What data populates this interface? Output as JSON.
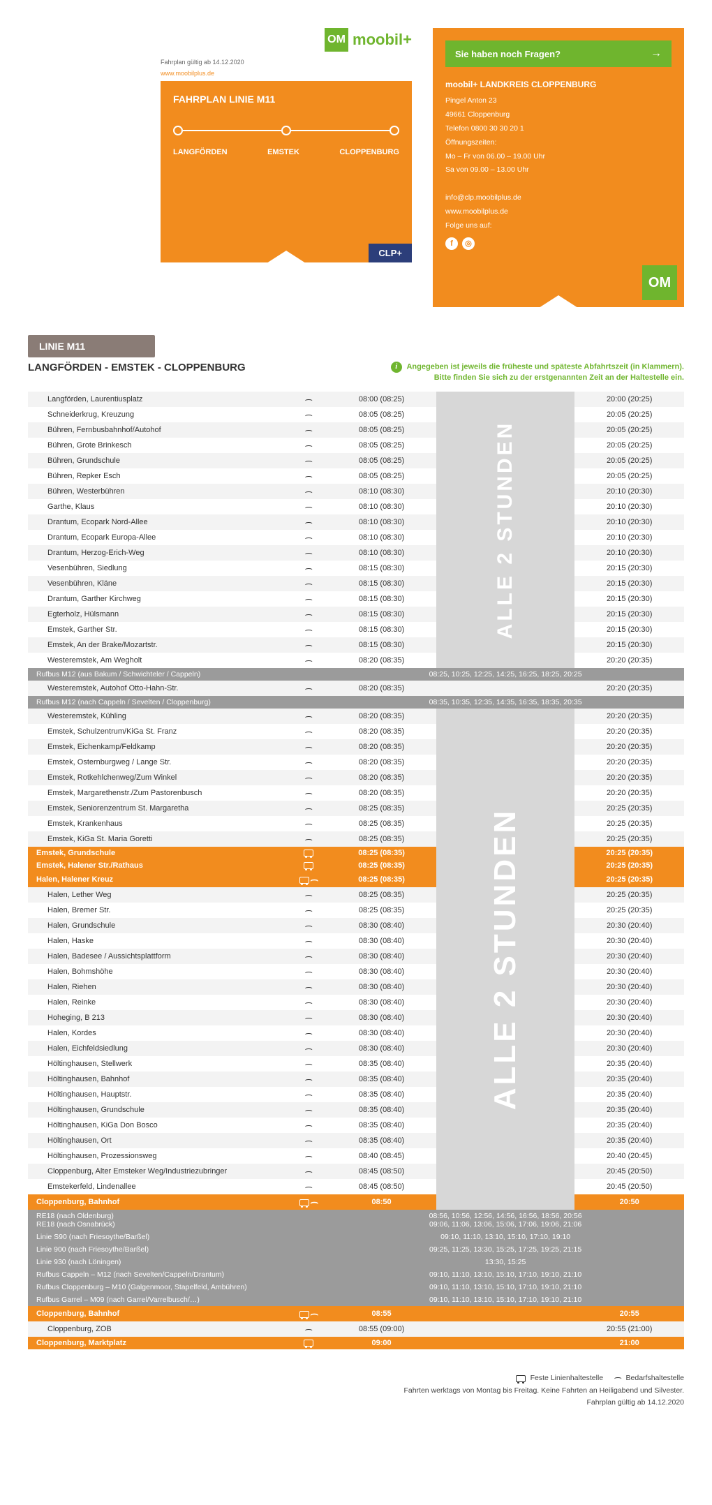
{
  "colors": {
    "orange": "#f28c1e",
    "green": "#6fb52e",
    "grey_header": "#8a7c76",
    "row_grey": "#9b9b9b",
    "stripe": "#f3f3f3",
    "gap": "#d7d7d7"
  },
  "header": {
    "brand_om": "OM",
    "brand": "moobil+",
    "valid_from": "Fahrplan gültig ab 14.12.2020",
    "website": "www.moobilplus.de",
    "card1_title": "FAHRPLAN LINIE M11",
    "route": [
      "LANGFÖRDEN",
      "EMSTEK",
      "CLOPPENBURG"
    ],
    "clp": "CLP+",
    "questions": "Sie haben noch Fragen?",
    "contact_title": "moobil+ LANDKREIS CLOPPENBURG",
    "contact_lines": [
      "Pingel Anton 23",
      "49661 Cloppenburg",
      "Telefon 0800 30 30 20 1",
      "Öffnungszeiten:",
      "Mo – Fr von 06.00 – 19.00 Uhr",
      "Sa von 09.00 – 13.00 Uhr",
      "",
      "info@clp.moobilplus.de",
      "www.moobilplus.de",
      "Folge uns auf:"
    ]
  },
  "timetable": {
    "line_label": "LINIE M11",
    "subtitle": "LANGFÖRDEN - EMSTEK - CLOPPENBURG",
    "info_note_l1": "Angegeben ist jeweils die früheste und späteste Abfahrtszeit (in Klammern).",
    "info_note_l2": "Bitte finden Sie sich zu der erstgenannten Zeit an der Haltestelle ein.",
    "interval_label": "ALLE   2 STUNDEN",
    "interval_label2": "ALLE  2 STUNDEN",
    "legend_fixed": "Feste Linienhaltestelle",
    "legend_demand": "Bedarfshaltestelle",
    "footer_l1": "Fahrten werktags von Montag bis Freitag. Keine Fahrten an Heiligabend und Silvester.",
    "footer_l2": "Fahrplan gültig ab 14.12.2020"
  },
  "rows": [
    {
      "t": "s",
      "n": "Langförden, Laurentiusplatz",
      "i": "d",
      "a": "08:00 (08:25)",
      "b": "20:00 (20:25)"
    },
    {
      "t": "s",
      "n": "Schneiderkrug, Kreuzung",
      "i": "d",
      "a": "08:05 (08:25)",
      "b": "20:05 (20:25)"
    },
    {
      "t": "s",
      "n": "Bühren, Fernbusbahnhof/Autohof",
      "i": "d",
      "a": "08:05 (08:25)",
      "b": "20:05 (20:25)"
    },
    {
      "t": "s",
      "n": "Bühren, Grote Brinkesch",
      "i": "d",
      "a": "08:05 (08:25)",
      "b": "20:05 (20:25)"
    },
    {
      "t": "s",
      "n": "Bühren, Grundschule",
      "i": "d",
      "a": "08:05 (08:25)",
      "b": "20:05 (20:25)"
    },
    {
      "t": "s",
      "n": "Bühren, Repker Esch",
      "i": "d",
      "a": "08:05 (08:25)",
      "b": "20:05 (20:25)"
    },
    {
      "t": "s",
      "n": "Bühren, Westerbühren",
      "i": "d",
      "a": "08:10 (08:30)",
      "b": "20:10 (20:30)"
    },
    {
      "t": "s",
      "n": "Garthe, Klaus",
      "i": "d",
      "a": "08:10 (08:30)",
      "b": "20:10 (20:30)"
    },
    {
      "t": "s",
      "n": "Drantum, Ecopark Nord-Allee",
      "i": "d",
      "a": "08:10 (08:30)",
      "b": "20:10 (20:30)"
    },
    {
      "t": "s",
      "n": "Drantum, Ecopark Europa-Allee",
      "i": "d",
      "a": "08:10 (08:30)",
      "b": "20:10 (20:30)"
    },
    {
      "t": "s",
      "n": "Drantum, Herzog-Erich-Weg",
      "i": "d",
      "a": "08:10 (08:30)",
      "b": "20:10 (20:30)"
    },
    {
      "t": "s",
      "n": "Vesenbühren, Siedlung",
      "i": "d",
      "a": "08:15 (08:30)",
      "b": "20:15 (20:30)"
    },
    {
      "t": "s",
      "n": "Vesenbühren, Kläne",
      "i": "d",
      "a": "08:15 (08:30)",
      "b": "20:15 (20:30)"
    },
    {
      "t": "s",
      "n": "Drantum, Garther Kirchweg",
      "i": "d",
      "a": "08:15 (08:30)",
      "b": "20:15 (20:30)"
    },
    {
      "t": "s",
      "n": "Egterholz, Hülsmann",
      "i": "d",
      "a": "08:15 (08:30)",
      "b": "20:15 (20:30)"
    },
    {
      "t": "s",
      "n": "Emstek, Garther Str.",
      "i": "d",
      "a": "08:15 (08:30)",
      "b": "20:15 (20:30)"
    },
    {
      "t": "s",
      "n": "Emstek, An der Brake/Mozartstr.",
      "i": "d",
      "a": "08:15 (08:30)",
      "b": "20:15 (20:30)"
    },
    {
      "t": "s",
      "n": "Westeremstek, Am Wegholt",
      "i": "d",
      "a": "08:20 (08:35)",
      "b": "20:20 (20:35)"
    },
    {
      "t": "g",
      "n": "Rufbus M12 (aus Bakum / Schwichteler / Cappeln)",
      "mid": "08:25, 10:25, 12:25, 14:25, 16:25, 18:25, 20:25"
    },
    {
      "t": "s",
      "n": "Westeremstek, Autohof Otto-Hahn-Str.",
      "i": "d",
      "a": "08:20 (08:35)",
      "b": "20:20 (20:35)",
      "nogap": true
    },
    {
      "t": "g",
      "n": "Rufbus M12 (nach Cappeln / Sevelten / Cloppenburg)",
      "mid": "08:35, 10:35, 12:35, 14:35, 16:35, 18:35, 20:35"
    },
    {
      "t": "s",
      "n": "Westeremstek, Kühling",
      "i": "d",
      "a": "08:20 (08:35)",
      "b": "20:20 (20:35)"
    },
    {
      "t": "s",
      "n": "Emstek, Schulzentrum/KiGa St. Franz",
      "i": "d",
      "a": "08:20 (08:35)",
      "b": "20:20 (20:35)"
    },
    {
      "t": "s",
      "n": "Emstek, Eichenkamp/Feldkamp",
      "i": "d",
      "a": "08:20 (08:35)",
      "b": "20:20 (20:35)"
    },
    {
      "t": "s",
      "n": "Emstek, Osternburgweg / Lange Str.",
      "i": "d",
      "a": "08:20 (08:35)",
      "b": "20:20 (20:35)"
    },
    {
      "t": "s",
      "n": "Emstek, Rotkehlchenweg/Zum Winkel",
      "i": "d",
      "a": "08:20 (08:35)",
      "b": "20:20 (20:35)"
    },
    {
      "t": "s",
      "n": "Emstek, Margarethenstr./Zum Pastorenbusch",
      "i": "d",
      "a": "08:20 (08:35)",
      "b": "20:20 (20:35)"
    },
    {
      "t": "s",
      "n": "Emstek, Seniorenzentrum St. Margaretha",
      "i": "d",
      "a": "08:25 (08:35)",
      "b": "20:25 (20:35)"
    },
    {
      "t": "s",
      "n": "Emstek, Krankenhaus",
      "i": "d",
      "a": "08:25 (08:35)",
      "b": "20:25 (20:35)"
    },
    {
      "t": "s",
      "n": "Emstek, KiGa St. Maria Goretti",
      "i": "d",
      "a": "08:25 (08:35)",
      "b": "20:25 (20:35)"
    },
    {
      "t": "o",
      "n": "Emstek, Grundschule",
      "i": "b",
      "a": "08:25 (08:35)",
      "b": "20:25 (20:35)"
    },
    {
      "t": "o",
      "n": "Emstek, Halener Str./Rathaus",
      "i": "b",
      "a": "08:25 (08:35)",
      "b": "20:25 (20:35)"
    },
    {
      "t": "o",
      "n": "Halen, Halener Kreuz",
      "i": "bd",
      "a": "08:25 (08:35)",
      "b": "20:25 (20:35)"
    },
    {
      "t": "s",
      "n": "Halen, Lether Weg",
      "i": "d",
      "a": "08:25 (08:35)",
      "b": "20:25 (20:35)"
    },
    {
      "t": "s",
      "n": "Halen, Bremer Str.",
      "i": "d",
      "a": "08:25 (08:35)",
      "b": "20:25 (20:35)"
    },
    {
      "t": "s",
      "n": "Halen, Grundschule",
      "i": "d",
      "a": "08:30 (08:40)",
      "b": "20:30 (20:40)"
    },
    {
      "t": "s",
      "n": "Halen, Haske",
      "i": "d",
      "a": "08:30 (08:40)",
      "b": "20:30 (20:40)"
    },
    {
      "t": "s",
      "n": "Halen, Badesee / Aussichtsplattform",
      "i": "d",
      "a": "08:30 (08:40)",
      "b": "20:30 (20:40)"
    },
    {
      "t": "s",
      "n": "Halen, Bohmshöhe",
      "i": "d",
      "a": "08:30 (08:40)",
      "b": "20:30 (20:40)"
    },
    {
      "t": "s",
      "n": "Halen, Riehen",
      "i": "d",
      "a": "08:30 (08:40)",
      "b": "20:30 (20:40)"
    },
    {
      "t": "s",
      "n": "Halen, Reinke",
      "i": "d",
      "a": "08:30 (08:40)",
      "b": "20:30 (20:40)"
    },
    {
      "t": "s",
      "n": "Hoheging, B 213",
      "i": "d",
      "a": "08:30 (08:40)",
      "b": "20:30 (20:40)"
    },
    {
      "t": "s",
      "n": "Halen, Kordes",
      "i": "d",
      "a": "08:30 (08:40)",
      "b": "20:30 (20:40)"
    },
    {
      "t": "s",
      "n": "Halen, Eichfeldsiedlung",
      "i": "d",
      "a": "08:30 (08:40)",
      "b": "20:30 (20:40)"
    },
    {
      "t": "s",
      "n": "Höltinghausen, Stellwerk",
      "i": "d",
      "a": "08:35 (08:40)",
      "b": "20:35 (20:40)"
    },
    {
      "t": "s",
      "n": "Höltinghausen, Bahnhof",
      "i": "d",
      "a": "08:35 (08:40)",
      "b": "20:35 (20:40)"
    },
    {
      "t": "s",
      "n": "Höltinghausen, Hauptstr.",
      "i": "d",
      "a": "08:35 (08:40)",
      "b": "20:35 (20:40)"
    },
    {
      "t": "s",
      "n": "Höltinghausen, Grundschule",
      "i": "d",
      "a": "08:35 (08:40)",
      "b": "20:35 (20:40)"
    },
    {
      "t": "s",
      "n": "Höltinghausen, KiGa Don Bosco",
      "i": "d",
      "a": "08:35 (08:40)",
      "b": "20:35 (20:40)"
    },
    {
      "t": "s",
      "n": "Höltinghausen, Ort",
      "i": "d",
      "a": "08:35 (08:40)",
      "b": "20:35 (20:40)"
    },
    {
      "t": "s",
      "n": "Höltinghausen, Prozessionsweg",
      "i": "d",
      "a": "08:40 (08:45)",
      "b": "20:40 (20:45)"
    },
    {
      "t": "s",
      "n": "Cloppenburg, Alter Emsteker Weg/Industriezubringer",
      "i": "d",
      "a": "08:45 (08:50)",
      "b": "20:45 (20:50)"
    },
    {
      "t": "s",
      "n": "Emstekerfeld, Lindenallee",
      "i": "d",
      "a": "08:45 (08:50)",
      "b": "20:45 (20:50)"
    },
    {
      "t": "o",
      "n": "Cloppenburg, Bahnhof",
      "i": "bd",
      "a": "08:50",
      "b": "20:50"
    },
    {
      "t": "g",
      "n": "RE18 (nach Oldenburg)\nRE18 (nach Osnabrück)",
      "mid": "08:56, 10:56, 12:56, 14:56, 16:56, 18:56, 20:56\n09:06, 11:06, 13:06, 15:06, 17:06, 19:06, 21:06"
    },
    {
      "t": "g",
      "n": "Linie S90 (nach Friesoythe/Barßel)",
      "mid": "09:10, 11:10, 13:10, 15:10, 17:10, 19:10"
    },
    {
      "t": "g",
      "n": "Linie 900 (nach Friesoythe/Barßel)",
      "mid": "09:25, 11:25, 13:30, 15:25, 17:25, 19:25, 21:15"
    },
    {
      "t": "g",
      "n": "Linie 930 (nach Löningen)",
      "mid": "13:30, 15:25"
    },
    {
      "t": "g",
      "n": "Rufbus Cappeln – M12 (nach Sevelten/Cappeln/Drantum)",
      "mid": "09:10, 11:10, 13:10, 15:10, 17:10, 19:10, 21:10"
    },
    {
      "t": "g",
      "n": "Rufbus Cloppenburg – M10 (Galgenmoor, Stapelfeld, Ambühren)",
      "mid": "09:10, 11:10, 13:10, 15:10, 17:10, 19:10, 21:10"
    },
    {
      "t": "g",
      "n": "Rufbus Garrel – M09 (nach Garrel/Varrelbusch/…)",
      "mid": "09:10, 11:10, 13:10, 15:10, 17:10, 19:10, 21:10"
    },
    {
      "t": "o",
      "n": "Cloppenburg, Bahnhof",
      "i": "bd",
      "a": "08:55",
      "b": "20:55",
      "nogap": true
    },
    {
      "t": "s",
      "n": "Cloppenburg, ZOB",
      "i": "d",
      "a": "08:55 (09:00)",
      "b": "20:55 (21:00)",
      "nogap": true
    },
    {
      "t": "o",
      "n": "Cloppenburg, Marktplatz",
      "i": "b",
      "a": "09:00",
      "b": "21:00",
      "nogap": true
    }
  ]
}
